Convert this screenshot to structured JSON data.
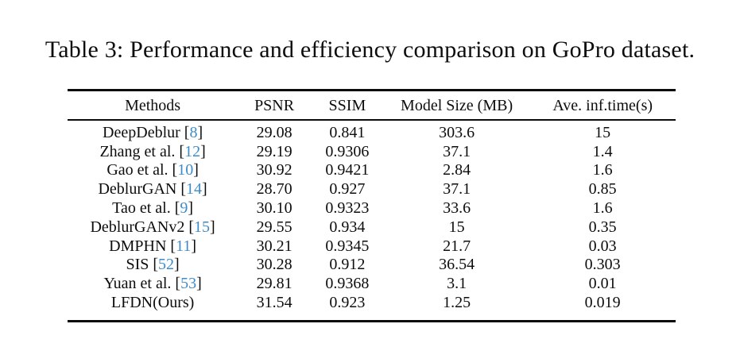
{
  "title": "Table 3: Performance and efficiency comparison on GoPro dataset.",
  "table": {
    "headers": [
      "Methods",
      "PSNR",
      "SSIM",
      "Model Size (MB)",
      "Ave. inf.time(s)"
    ],
    "citation_color": "#3d8cc9",
    "rule_color": "#0b0b0b",
    "rows": [
      {
        "method": "DeepDeblur [",
        "cite": "8",
        "close": "]",
        "psnr": "29.08",
        "ssim": "0.841",
        "size": "303.6",
        "time": "15"
      },
      {
        "method": "Zhang et al. [",
        "cite": "12",
        "close": "]",
        "psnr": "29.19",
        "ssim": "0.9306",
        "size": "37.1",
        "time": "1.4"
      },
      {
        "method": "Gao et al. [",
        "cite": "10",
        "close": "]",
        "psnr": "30.92",
        "ssim": "0.9421",
        "size": "2.84",
        "time": "1.6"
      },
      {
        "method": "DeblurGAN [",
        "cite": "14",
        "close": "]",
        "psnr": "28.70",
        "ssim": "0.927",
        "size": "37.1",
        "time": "0.85"
      },
      {
        "method": "Tao et al. [",
        "cite": "9",
        "close": "]",
        "psnr": "30.10",
        "ssim": "0.9323",
        "size": "33.6",
        "time": "1.6"
      },
      {
        "method": "DeblurGANv2 [",
        "cite": "15",
        "close": "]",
        "psnr": "29.55",
        "ssim": "0.934",
        "size": "15",
        "time": "0.35"
      },
      {
        "method": "DMPHN [",
        "cite": "11",
        "close": "]",
        "psnr": "30.21",
        "ssim": "0.9345",
        "size": "21.7",
        "time": "0.03"
      },
      {
        "method": "SIS [",
        "cite": "52",
        "close": "]",
        "psnr": "30.28",
        "ssim": "0.912",
        "size": "36.54",
        "time": "0.303"
      },
      {
        "method": "Yuan et al. [",
        "cite": "53",
        "close": "]",
        "psnr": "29.81",
        "ssim": "0.9368",
        "size": "3.1",
        "time": "0.01"
      },
      {
        "method": "LFDN(Ours)",
        "cite": "",
        "close": "",
        "psnr": "31.54",
        "ssim": "0.923",
        "size": "1.25",
        "time": "0.019"
      }
    ]
  }
}
